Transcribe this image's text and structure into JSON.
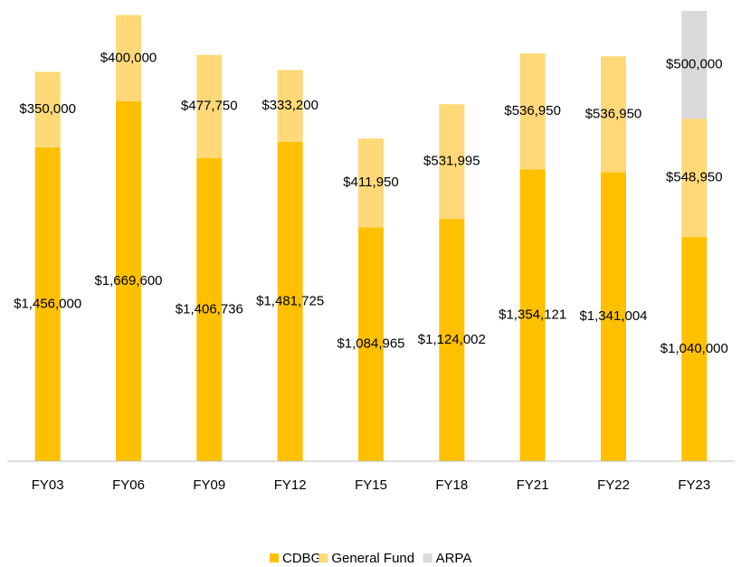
{
  "chart_data": {
    "type": "stacked_bar",
    "categories": [
      "FY03",
      "FY06",
      "FY09",
      "FY12",
      "FY15",
      "FY18",
      "FY21",
      "FY22",
      "FY23"
    ],
    "series": [
      {
        "name": "CDBG",
        "color": "#ffc000",
        "values": [
          1456000,
          1669600,
          1406736,
          1481725,
          1084965,
          1124002,
          1354121,
          1341004,
          1040000
        ],
        "value_labels": [
          "$1,456,000",
          "$1,669,600",
          "$1,406,736",
          "$1,481,725",
          "$1,084,965",
          "$1,124,002",
          "$1,354,121",
          "$1,341,004",
          "$1,040,000"
        ]
      },
      {
        "name": "General Fund",
        "color": "#ffd978",
        "values": [
          350000,
          400000,
          477750,
          333200,
          411950,
          531995,
          536950,
          536950,
          548950
        ],
        "value_labels": [
          "$350,000",
          "$400,000",
          "$477,750",
          "$333,200",
          "$411,950",
          "$531,995",
          "$536,950",
          "$536,950",
          "$548,950"
        ]
      },
      {
        "name": "ARPA",
        "color": "#d9d9d9",
        "values": [
          null,
          null,
          null,
          null,
          null,
          null,
          null,
          null,
          500000
        ],
        "value_labels": [
          null,
          null,
          null,
          null,
          null,
          null,
          null,
          null,
          "$500,000"
        ]
      }
    ],
    "legend": "bottom"
  }
}
